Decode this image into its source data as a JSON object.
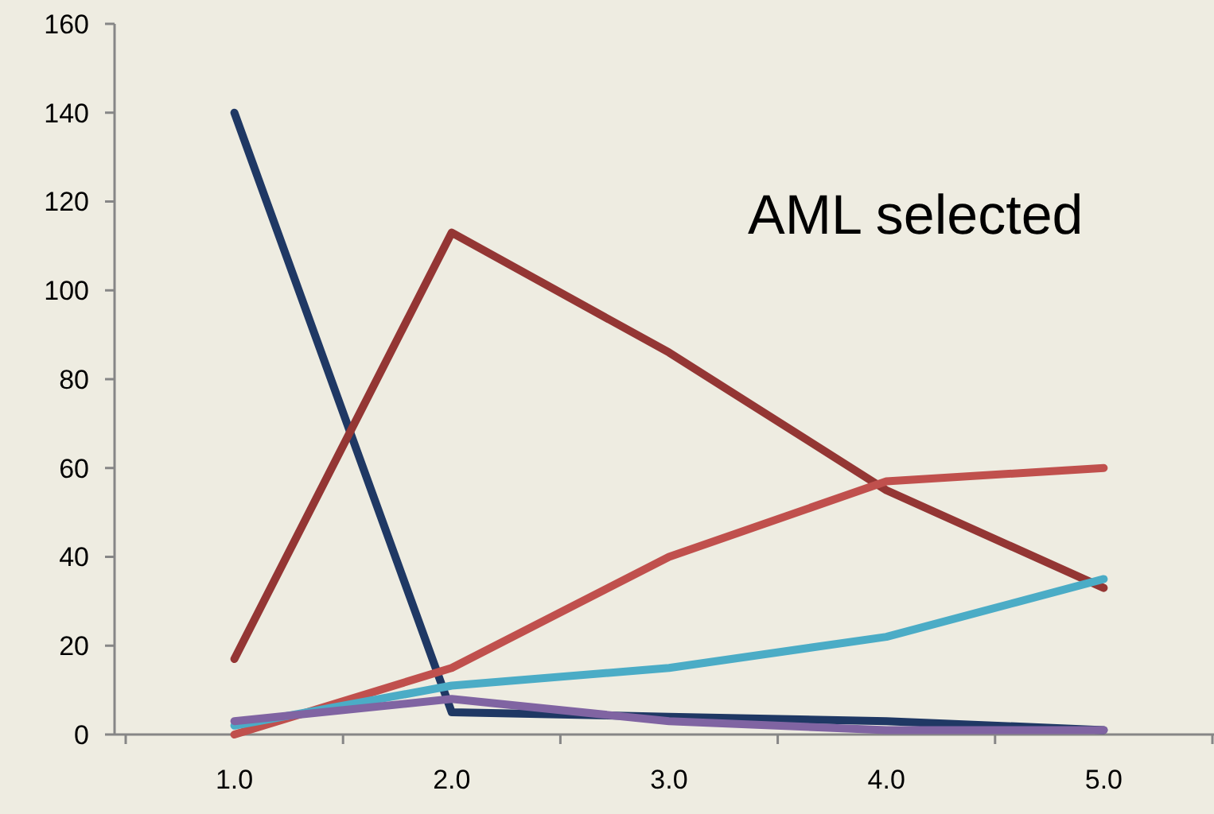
{
  "chart_data": {
    "type": "line",
    "categories": [
      "1.0",
      "2.0",
      "3.0",
      "4.0",
      "5.0"
    ],
    "series": [
      {
        "color": "#1f3864",
        "values": [
          140,
          5,
          4,
          3,
          1
        ]
      },
      {
        "color": "#943634",
        "values": [
          17,
          113,
          86,
          55,
          33
        ]
      },
      {
        "color": "#c0504d",
        "values": [
          0,
          15,
          40,
          57,
          60
        ]
      },
      {
        "color": "#4bacc6",
        "values": [
          2,
          11,
          15,
          22,
          35
        ]
      },
      {
        "color": "#8064a2",
        "values": [
          3,
          8,
          3,
          1,
          1
        ]
      }
    ],
    "ylim": [
      0,
      160
    ],
    "yticks": [
      0,
      20,
      40,
      60,
      80,
      100,
      120,
      140,
      160
    ],
    "marker": "none",
    "line_style": "solid",
    "annotations": [
      "AML selected"
    ]
  }
}
